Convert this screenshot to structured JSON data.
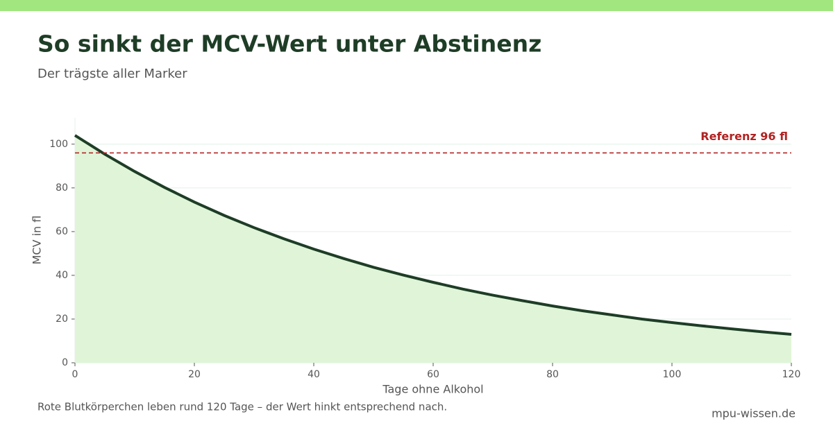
{
  "chart_data": {
    "type": "area",
    "title": "So sinkt der MCV-Wert unter Abstinenz",
    "subtitle": "Der trägste aller Marker",
    "xlabel": "Tage ohne Alkohol",
    "ylabel": "MCV in fl",
    "note": "Rote Blutkörperchen leben rund 120 Tage – der Wert hinkt entsprechend nach.",
    "source": "mpu-wissen.de",
    "x": [
      0,
      5,
      10,
      15,
      20,
      25,
      30,
      35,
      40,
      45,
      50,
      55,
      60,
      65,
      70,
      75,
      80,
      85,
      90,
      95,
      100,
      105,
      110,
      115,
      120
    ],
    "series": [
      {
        "color": "#1e3d26",
        "fill": "#e0f5d8",
        "values": [
          104,
          95.4,
          87.5,
          80.2,
          73.5,
          67.4,
          61.8,
          56.7,
          52.0,
          47.7,
          43.7,
          40.1,
          36.8,
          33.7,
          30.9,
          28.4,
          26.0,
          23.8,
          21.9,
          20.0,
          18.4,
          16.9,
          15.5,
          14.2,
          13.0
        ]
      }
    ],
    "reference": {
      "value": 96,
      "label": "Referenz 96 fl",
      "color": "#b22222"
    },
    "xlim": [
      0,
      120
    ],
    "xticks": [
      0,
      20,
      40,
      60,
      80,
      100,
      120
    ],
    "ylim": [
      0,
      112
    ],
    "yticks": [
      0,
      20,
      40,
      60,
      80,
      100
    ],
    "grid": true
  }
}
